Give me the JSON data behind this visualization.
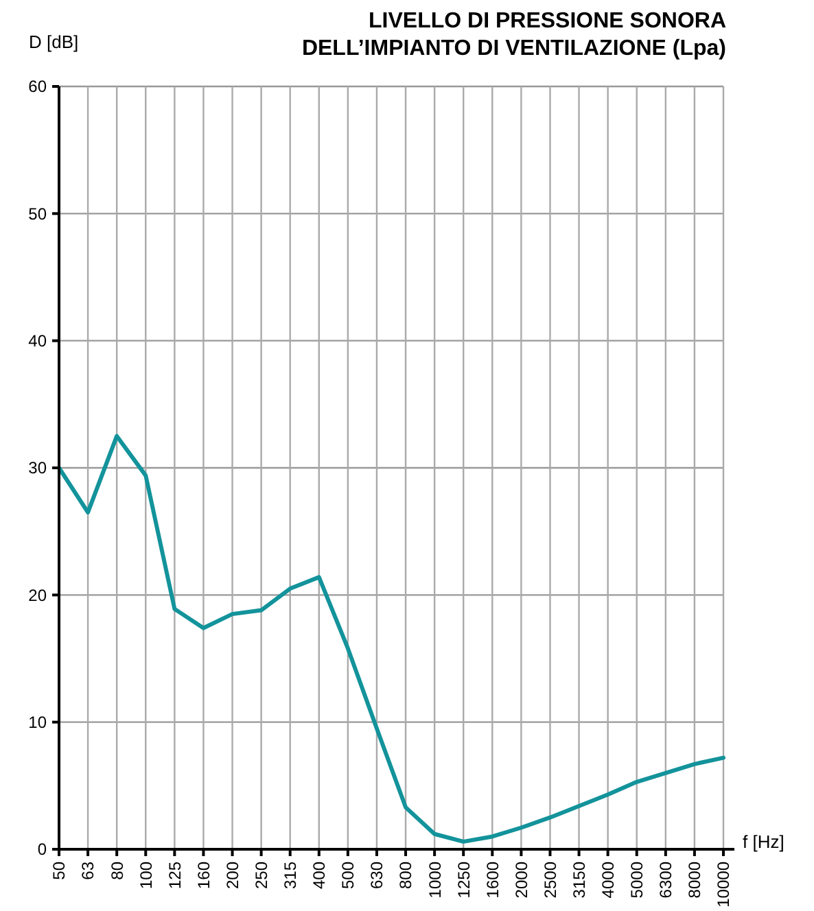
{
  "chart_data": {
    "type": "line",
    "title": "LIVELLO DI PRESSIONE SONORA\nDELL’IMPIANTO DI VENTILAZIONE (Lpa)",
    "xlabel": "f [Hz]",
    "ylabel": "D [dB]",
    "categories": [
      "50",
      "63",
      "80",
      "100",
      "125",
      "160",
      "200",
      "250",
      "315",
      "400",
      "500",
      "630",
      "800",
      "1000",
      "1250",
      "1600",
      "2000",
      "2500",
      "3150",
      "4000",
      "5000",
      "6300",
      "8000",
      "10000"
    ],
    "series": [
      {
        "color": "#13939b",
        "values": [
          30,
          26.5,
          32.5,
          29.4,
          18.9,
          17.4,
          18.5,
          18.8,
          20.5,
          21.4,
          15.8,
          9.5,
          3.3,
          1.2,
          0.6,
          1.0,
          1.7,
          2.5,
          3.4,
          4.3,
          5.3,
          6.0,
          6.7,
          7.2
        ]
      }
    ],
    "ylim": [
      0,
      60
    ],
    "yticks": [
      0,
      10,
      20,
      30,
      40,
      50,
      60
    ],
    "grid": true,
    "marker": "none",
    "line_style": "solid"
  }
}
